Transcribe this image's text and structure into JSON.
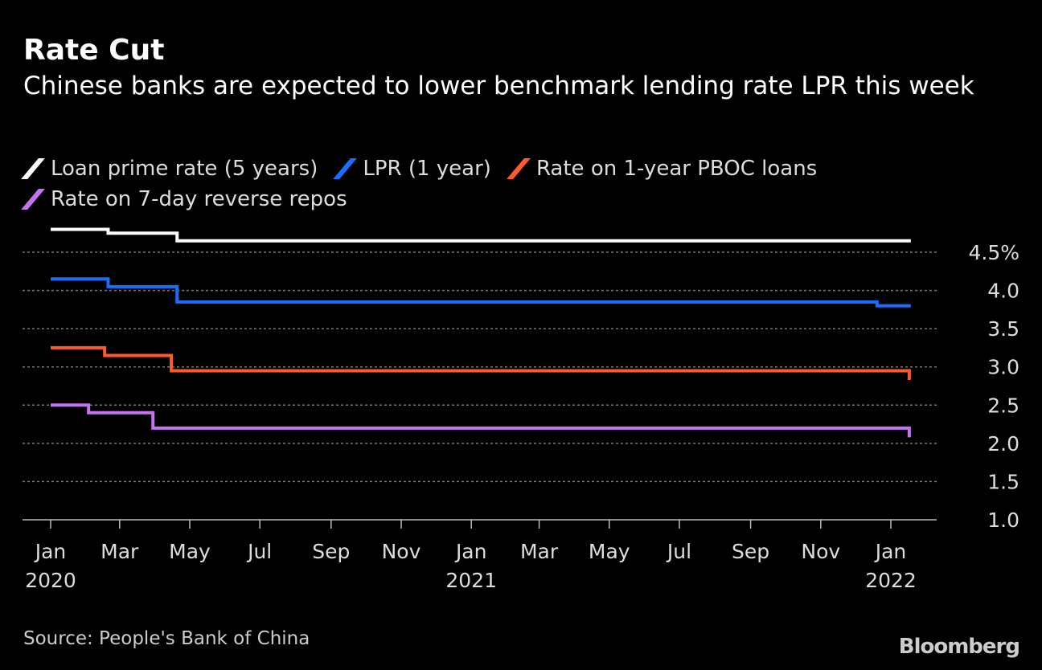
{
  "chart_data": {
    "type": "line",
    "title": "Rate Cut",
    "subtitle": "Chinese banks are expected to lower benchmark lending rate LPR this week",
    "ylabel": "",
    "xlabel": "",
    "ylim": [
      1.0,
      4.5
    ],
    "yticks": [
      {
        "value": 4.5,
        "label": "4.5%"
      },
      {
        "value": 4.0,
        "label": "4.0"
      },
      {
        "value": 3.5,
        "label": "3.5"
      },
      {
        "value": 3.0,
        "label": "3.0"
      },
      {
        "value": 2.5,
        "label": "2.5"
      },
      {
        "value": 2.0,
        "label": "2.0"
      },
      {
        "value": 1.5,
        "label": "1.5"
      },
      {
        "value": 1.0,
        "label": "1.0"
      }
    ],
    "xrange": [
      "2019-12-20",
      "2022-02-15"
    ],
    "xticks": [
      {
        "date": "2020-01-01",
        "label": "Jan",
        "year": "2020"
      },
      {
        "date": "2020-03-01",
        "label": "Mar"
      },
      {
        "date": "2020-05-01",
        "label": "May"
      },
      {
        "date": "2020-07-01",
        "label": "Jul"
      },
      {
        "date": "2020-09-01",
        "label": "Sep"
      },
      {
        "date": "2020-11-01",
        "label": "Nov"
      },
      {
        "date": "2021-01-01",
        "label": "Jan",
        "year": "2021"
      },
      {
        "date": "2021-03-01",
        "label": "Mar"
      },
      {
        "date": "2021-05-01",
        "label": "May"
      },
      {
        "date": "2021-07-01",
        "label": "Jul"
      },
      {
        "date": "2021-09-01",
        "label": "Sep"
      },
      {
        "date": "2021-11-01",
        "label": "Nov"
      },
      {
        "date": "2022-01-01",
        "label": "Jan",
        "year": "2022"
      }
    ],
    "grid": true,
    "legend_position": "top-left",
    "end_date": "2022-01-17",
    "series": [
      {
        "name": "Loan prime rate (5 years)",
        "color": "#ffffff",
        "steps": [
          [
            "2020-01-01",
            4.8
          ],
          [
            "2020-02-20",
            4.75
          ],
          [
            "2020-04-20",
            4.65
          ]
        ]
      },
      {
        "name": "LPR (1 year)",
        "color": "#1a6dff",
        "steps": [
          [
            "2020-01-01",
            4.15
          ],
          [
            "2020-02-20",
            4.05
          ],
          [
            "2020-04-20",
            3.85
          ],
          [
            "2021-12-20",
            3.8
          ]
        ]
      },
      {
        "name": "Rate on 1-year PBOC loans",
        "color": "#ff5a2a",
        "steps": [
          [
            "2020-01-01",
            3.25
          ],
          [
            "2020-02-17",
            3.15
          ],
          [
            "2020-04-15",
            2.95
          ],
          [
            "2022-01-17",
            2.85
          ]
        ]
      },
      {
        "name": "Rate on 7-day reverse repos",
        "color": "#c473f2",
        "steps": [
          [
            "2020-01-01",
            2.5
          ],
          [
            "2020-02-03",
            2.4
          ],
          [
            "2020-03-30",
            2.2
          ],
          [
            "2022-01-17",
            2.1
          ]
        ]
      }
    ]
  },
  "source": "Source: People's Bank of China",
  "logo": "Bloomberg"
}
